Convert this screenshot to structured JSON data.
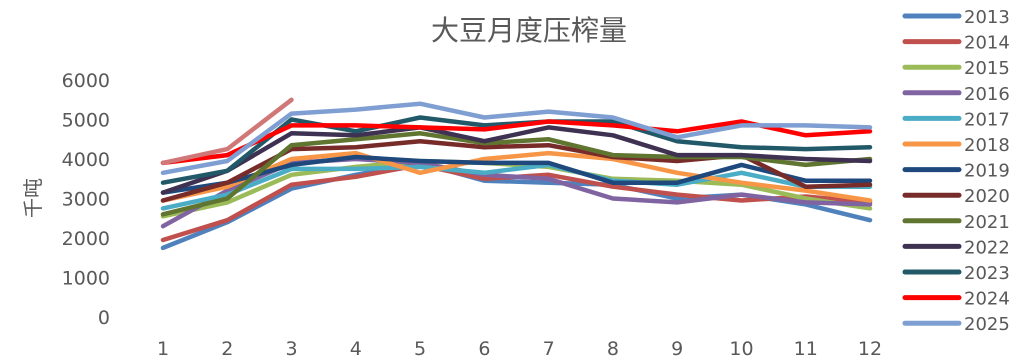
{
  "chart_data": {
    "type": "line",
    "title": "大豆月度压榨量",
    "xlabel": "",
    "ylabel": "千吨",
    "categories": [
      "1",
      "2",
      "3",
      "4",
      "5",
      "6",
      "7",
      "8",
      "9",
      "10",
      "11",
      "12"
    ],
    "ylim": [
      0,
      6000
    ],
    "yticks": [
      0,
      1000,
      2000,
      3000,
      4000,
      5000,
      6000
    ],
    "grid": false,
    "legend_position": "right",
    "series": [
      {
        "name": "2013",
        "color": "#4f81bd",
        "values": [
          1750,
          2400,
          3250,
          3600,
          3900,
          3450,
          3400,
          3350,
          3000,
          3100,
          2850,
          2450
        ]
      },
      {
        "name": "2014",
        "color": "#c0504d",
        "values": [
          1950,
          2450,
          3350,
          3550,
          3850,
          3500,
          3600,
          3300,
          3100,
          2950,
          3050,
          2900
        ]
      },
      {
        "name": "2015",
        "color": "#9bbb59",
        "values": [
          2550,
          2900,
          3600,
          3800,
          3950,
          3900,
          3800,
          3500,
          3450,
          3350,
          3000,
          2750
        ]
      },
      {
        "name": "2016",
        "color": "#8064a2",
        "values": [
          2300,
          3200,
          3900,
          4000,
          3900,
          3600,
          3500,
          3000,
          2900,
          3100,
          2900,
          2850
        ]
      },
      {
        "name": "2017",
        "color": "#4bacc6",
        "values": [
          2750,
          3100,
          3750,
          3750,
          3800,
          3650,
          3850,
          3450,
          3350,
          3650,
          3300,
          3300
        ]
      },
      {
        "name": "2018",
        "color": "#f79646",
        "values": [
          2950,
          3300,
          4000,
          4150,
          3650,
          4000,
          4150,
          4000,
          3650,
          3400,
          3200,
          2950
        ]
      },
      {
        "name": "2019",
        "color": "#1f497d",
        "values": [
          3150,
          3400,
          3850,
          4050,
          3950,
          3900,
          3900,
          3400,
          3400,
          3850,
          3450,
          3450
        ]
      },
      {
        "name": "2020",
        "color": "#772c2a",
        "values": [
          2950,
          3400,
          4250,
          4300,
          4450,
          4300,
          4350,
          4050,
          3950,
          4100,
          3300,
          3350
        ]
      },
      {
        "name": "2021",
        "color": "#5f7530",
        "values": [
          2600,
          3000,
          4350,
          4500,
          4650,
          4400,
          4500,
          4100,
          4050,
          4050,
          3850,
          4000
        ]
      },
      {
        "name": "2022",
        "color": "#3f3151",
        "values": [
          3150,
          3700,
          4650,
          4600,
          4800,
          4450,
          4800,
          4600,
          4100,
          4100,
          4000,
          3950
        ]
      },
      {
        "name": "2023",
        "color": "#215968",
        "values": [
          3400,
          3700,
          5000,
          4700,
          5050,
          4850,
          4950,
          4950,
          4450,
          4300,
          4250,
          4300
        ]
      },
      {
        "name": "2024",
        "color": "#ff0000",
        "values": [
          3900,
          4100,
          4850,
          4850,
          4800,
          4750,
          4950,
          4850,
          4700,
          4950,
          4600,
          4700
        ]
      },
      {
        "name": "2025",
        "color": "#7f9fd3",
        "values": [
          3650,
          3950,
          5150,
          5250,
          5400,
          5050,
          5200,
          5050,
          4550,
          4850,
          4850,
          4800
        ]
      },
      {
        "name": "",
        "color": "#d07878",
        "values": [
          3900,
          4250,
          5500,
          null,
          null,
          null,
          null,
          null,
          null,
          null,
          null,
          null
        ]
      }
    ]
  }
}
